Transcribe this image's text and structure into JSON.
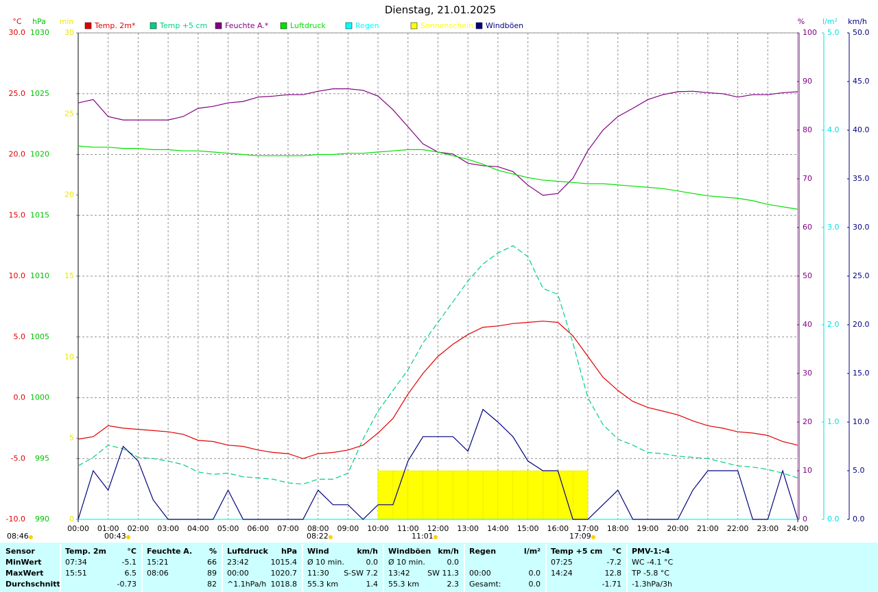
{
  "chart_data": {
    "type": "line",
    "title": "Dienstag, 21.01.2025",
    "xlim": [
      0,
      24
    ],
    "xticks": [
      {
        "value": 0,
        "label": "00:00"
      },
      {
        "value": 1,
        "label": "01:00"
      },
      {
        "value": 2,
        "label": "02:00"
      },
      {
        "value": 3,
        "label": "03:00"
      },
      {
        "value": 4,
        "label": "04:00"
      },
      {
        "value": 5,
        "label": "05:00"
      },
      {
        "value": 6,
        "label": "06:00"
      },
      {
        "value": 7,
        "label": "07:00"
      },
      {
        "value": 8,
        "label": "08:00"
      },
      {
        "value": 9,
        "label": "09:00"
      },
      {
        "value": 10,
        "label": "10:00"
      },
      {
        "value": 11,
        "label": "11:00"
      },
      {
        "value": 12,
        "label": "12:00"
      },
      {
        "value": 13,
        "label": "13:00"
      },
      {
        "value": 14,
        "label": "14:00"
      },
      {
        "value": 15,
        "label": "15:00"
      },
      {
        "value": 16,
        "label": "16:00"
      },
      {
        "value": 17,
        "label": "17:00"
      },
      {
        "value": 18,
        "label": "18:00"
      },
      {
        "value": 19,
        "label": "19:00"
      },
      {
        "value": 20,
        "label": "20:00"
      },
      {
        "value": 21,
        "label": "21:00"
      },
      {
        "value": 22,
        "label": "22:00"
      },
      {
        "value": 23,
        "label": "23:00"
      },
      {
        "value": 24,
        "label": "24:00"
      }
    ],
    "grid": true,
    "axes": {
      "temp": {
        "label": "°C",
        "color": "#e00000",
        "lim": [
          -10,
          30
        ],
        "ticks": [
          {
            "value": -10,
            "label": "-10.0"
          },
          {
            "value": -5,
            "label": "-5.0"
          },
          {
            "value": 0,
            "label": "0.0"
          },
          {
            "value": 5,
            "label": "5.0"
          },
          {
            "value": 10,
            "label": "10.0"
          },
          {
            "value": 15,
            "label": "15.0"
          },
          {
            "value": 20,
            "label": "20.0"
          },
          {
            "value": 25,
            "label": "25.0"
          },
          {
            "value": 30,
            "label": "30.0"
          }
        ]
      },
      "pressure": {
        "label": "hPa",
        "color": "#00c000",
        "lim": [
          990,
          1030
        ],
        "ticks": [
          990,
          995,
          1000,
          1005,
          1010,
          1015,
          1020,
          1025,
          1030
        ]
      },
      "minutes": {
        "label": "min",
        "color": "#e8e800",
        "lim": [
          0,
          30
        ],
        "ticks": [
          0,
          5,
          10,
          15,
          20,
          25,
          30
        ]
      },
      "humidity": {
        "label": "%",
        "color": "#800080",
        "lim": [
          0,
          100
        ],
        "ticks": [
          0,
          10,
          20,
          30,
          40,
          50,
          60,
          70,
          80,
          90,
          100
        ]
      },
      "rain": {
        "label": "l/m²",
        "color": "#00e0e0",
        "lim": [
          0,
          5
        ],
        "ticks": [
          {
            "value": 0,
            "label": "0.0"
          },
          {
            "value": 1,
            "label": "1.0"
          },
          {
            "value": 2,
            "label": "2.0"
          },
          {
            "value": 3,
            "label": "3.0"
          },
          {
            "value": 4,
            "label": "4.0"
          },
          {
            "value": 5,
            "label": "5.0"
          }
        ]
      },
      "wind": {
        "label": "km/h",
        "color": "#000080",
        "lim": [
          0,
          50
        ],
        "ticks": [
          {
            "value": 0,
            "label": "0.0"
          },
          {
            "value": 5,
            "label": "5.0"
          },
          {
            "value": 10,
            "label": "10.0"
          },
          {
            "value": 15,
            "label": "15.0"
          },
          {
            "value": 20,
            "label": "20.0"
          },
          {
            "value": 25,
            "label": "25.0"
          },
          {
            "value": 30,
            "label": "30.0"
          },
          {
            "value": 35,
            "label": "35.0"
          },
          {
            "value": 40,
            "label": "40.0"
          },
          {
            "value": 45,
            "label": "45.0"
          },
          {
            "value": 50,
            "label": "50.0"
          }
        ]
      }
    },
    "x": [
      0,
      0.5,
      1,
      1.5,
      2,
      2.5,
      3,
      3.5,
      4,
      4.5,
      5,
      5.5,
      6,
      6.5,
      7,
      7.5,
      8,
      8.5,
      9,
      9.5,
      10,
      10.5,
      11,
      11.5,
      12,
      12.5,
      13,
      13.5,
      14,
      14.5,
      15,
      15.5,
      16,
      16.5,
      17,
      17.5,
      18,
      18.5,
      19,
      19.5,
      20,
      20.5,
      21,
      21.5,
      22,
      22.5,
      23,
      23.5,
      24
    ],
    "series": [
      {
        "name": "Temp. 2m*",
        "color": "#e00000",
        "axis": "temp",
        "values": [
          -3.4,
          -3.2,
          -2.3,
          -2.5,
          -2.6,
          -2.7,
          -2.8,
          -3.0,
          -3.5,
          -3.6,
          -3.9,
          -4.0,
          -4.3,
          -4.5,
          -4.6,
          -5.0,
          -4.6,
          -4.5,
          -4.3,
          -3.9,
          -2.9,
          -1.7,
          0.3,
          2.0,
          3.4,
          4.4,
          5.2,
          5.8,
          5.9,
          6.1,
          6.2,
          6.3,
          6.2,
          5.1,
          3.4,
          1.7,
          0.6,
          -0.3,
          -0.8,
          -1.1,
          -1.4,
          -1.9,
          -2.3,
          -2.5,
          -2.8,
          -2.9,
          -3.1,
          -3.6,
          -3.9
        ]
      },
      {
        "name": "Temp +5 cm",
        "color": "#00d080",
        "axis": "temp",
        "dashed": true,
        "values": [
          -5.6,
          -4.9,
          -3.9,
          -4.2,
          -4.9,
          -5.0,
          -5.2,
          -5.5,
          -6.1,
          -6.3,
          -6.2,
          -6.5,
          -6.6,
          -6.7,
          -7.0,
          -7.1,
          -6.7,
          -6.7,
          -6.2,
          -3.4,
          -1.1,
          0.6,
          2.3,
          4.5,
          6.2,
          7.9,
          9.6,
          11.0,
          11.9,
          12.5,
          11.6,
          9.0,
          8.5,
          4.5,
          0.0,
          -2.2,
          -3.4,
          -3.9,
          -4.5,
          -4.6,
          -4.8,
          -4.9,
          -5.0,
          -5.3,
          -5.6,
          -5.7,
          -5.9,
          -6.2,
          -6.6
        ]
      },
      {
        "name": "Feuchte A.*",
        "color": "#800080",
        "axis": "humidity",
        "values": [
          85.6,
          86.3,
          82.8,
          82.1,
          82.1,
          82.1,
          82.1,
          82.8,
          84.5,
          84.9,
          85.6,
          85.9,
          86.8,
          87.0,
          87.3,
          87.3,
          88.0,
          88.5,
          88.5,
          88.2,
          87.0,
          84.2,
          80.7,
          77.2,
          75.5,
          75.1,
          73.2,
          72.7,
          72.5,
          71.5,
          68.7,
          66.6,
          67.0,
          70.1,
          75.8,
          80.0,
          82.8,
          84.5,
          86.3,
          87.3,
          87.9,
          88.0,
          87.7,
          87.5,
          86.8,
          87.3,
          87.3,
          87.7,
          87.9
        ]
      },
      {
        "name": "Luftdruck",
        "color": "#00e000",
        "axis": "pressure",
        "values": [
          1020.7,
          1020.6,
          1020.6,
          1020.5,
          1020.5,
          1020.4,
          1020.4,
          1020.3,
          1020.3,
          1020.2,
          1020.1,
          1020.0,
          1019.9,
          1019.9,
          1019.9,
          1019.9,
          1020.0,
          1020.0,
          1020.1,
          1020.1,
          1020.2,
          1020.3,
          1020.4,
          1020.4,
          1020.2,
          1019.9,
          1019.6,
          1019.2,
          1018.7,
          1018.4,
          1018.1,
          1017.9,
          1017.8,
          1017.7,
          1017.6,
          1017.6,
          1017.5,
          1017.4,
          1017.3,
          1017.2,
          1017.0,
          1016.8,
          1016.6,
          1016.5,
          1016.4,
          1016.2,
          1015.9,
          1015.7,
          1015.5
        ]
      },
      {
        "name": "Regen",
        "color": "#00ffff",
        "axis": "rain",
        "values": [
          0,
          0,
          0,
          0,
          0,
          0,
          0,
          0,
          0,
          0,
          0,
          0,
          0,
          0,
          0,
          0,
          0,
          0,
          0,
          0,
          0,
          0,
          0,
          0,
          0,
          0,
          0,
          0,
          0,
          0,
          0,
          0,
          0,
          0,
          0,
          0,
          0,
          0,
          0,
          0,
          0,
          0,
          0,
          0,
          0,
          0,
          0,
          0,
          0
        ]
      },
      {
        "name": "Sonnenschein",
        "color": "#ffff00",
        "axis": "minutes",
        "kind": "bar",
        "values": [
          0,
          0,
          0,
          0,
          0,
          0,
          0,
          0,
          0,
          0,
          0,
          0,
          0,
          0,
          0,
          0,
          0,
          0,
          0,
          0,
          3,
          3,
          3,
          3,
          3,
          3,
          3,
          3,
          3,
          3,
          3,
          3,
          3,
          3,
          0,
          0,
          0,
          0,
          0,
          0,
          0,
          0,
          0,
          0,
          0,
          0,
          0,
          0,
          0
        ]
      },
      {
        "name": "Windböen",
        "color": "#000080",
        "axis": "wind",
        "values": [
          0,
          5.0,
          3.0,
          7.5,
          6.0,
          2.0,
          0,
          0,
          0,
          0,
          3.0,
          0,
          0,
          0,
          0,
          0,
          3.0,
          1.5,
          1.5,
          0,
          1.5,
          1.5,
          6.0,
          8.5,
          8.5,
          8.5,
          7.0,
          11.3,
          10.0,
          8.5,
          6.0,
          5.0,
          5.0,
          0,
          0,
          1.5,
          3.0,
          0,
          0,
          0,
          0,
          3.0,
          5.0,
          5.0,
          5.0,
          0,
          0,
          5.0,
          0
        ]
      }
    ],
    "events": [
      "08:46",
      "00:43",
      "08:22",
      "11:01",
      "17:09"
    ]
  },
  "table": {
    "row_labels": [
      "Sensor",
      "MinWert",
      "MaxWert",
      "Durchschnitt"
    ],
    "groups": [
      {
        "title": "Temp. 2m",
        "unit": "°C",
        "rows": [
          [
            "07:34",
            "-5.1"
          ],
          [
            "15:51",
            "6.5"
          ],
          [
            null,
            "-0.73"
          ]
        ]
      },
      {
        "title": "Feuchte A.",
        "unit": "%",
        "rows": [
          [
            "15:21",
            "66"
          ],
          [
            "08:06",
            "89"
          ],
          [
            null,
            "82"
          ]
        ]
      },
      {
        "title": "Luftdruck",
        "unit": "hPa",
        "rows": [
          [
            "23:42",
            "1015.4"
          ],
          [
            "00:00",
            "1020.7"
          ],
          [
            "^1.1hPa/h",
            "1018.8"
          ]
        ]
      },
      {
        "title": "Wind",
        "unit": "km/h",
        "rows": [
          [
            "Ø 10 min.",
            "0.0"
          ],
          [
            "11:30",
            "S-SW 7.2"
          ],
          [
            "55.3 km",
            "1.4"
          ]
        ]
      },
      {
        "title": "Windböen",
        "unit": "km/h",
        "rows": [
          [
            "Ø 10 min.",
            "0.0"
          ],
          [
            "13:42",
            "SW 11.3"
          ],
          [
            "55.3 km",
            "2.3"
          ]
        ]
      },
      {
        "title": "Regen",
        "unit": "l/m²",
        "rows": [
          [
            null,
            null
          ],
          [
            "00:00",
            "0.0"
          ],
          [
            "Gesamt:",
            "0.0"
          ]
        ]
      },
      {
        "title": "Temp +5 cm",
        "unit": "°C",
        "rows": [
          [
            "07:25",
            "-7.2"
          ],
          [
            "14:24",
            "12.8"
          ],
          [
            null,
            "-1.71"
          ]
        ]
      },
      {
        "title": "PMV-1:-4",
        "unit": null,
        "rows": [
          [
            "WC -4.1 °C"
          ],
          [
            "TP -5.8 °C"
          ],
          [
            "-1.3hPa/3h"
          ]
        ]
      }
    ]
  }
}
